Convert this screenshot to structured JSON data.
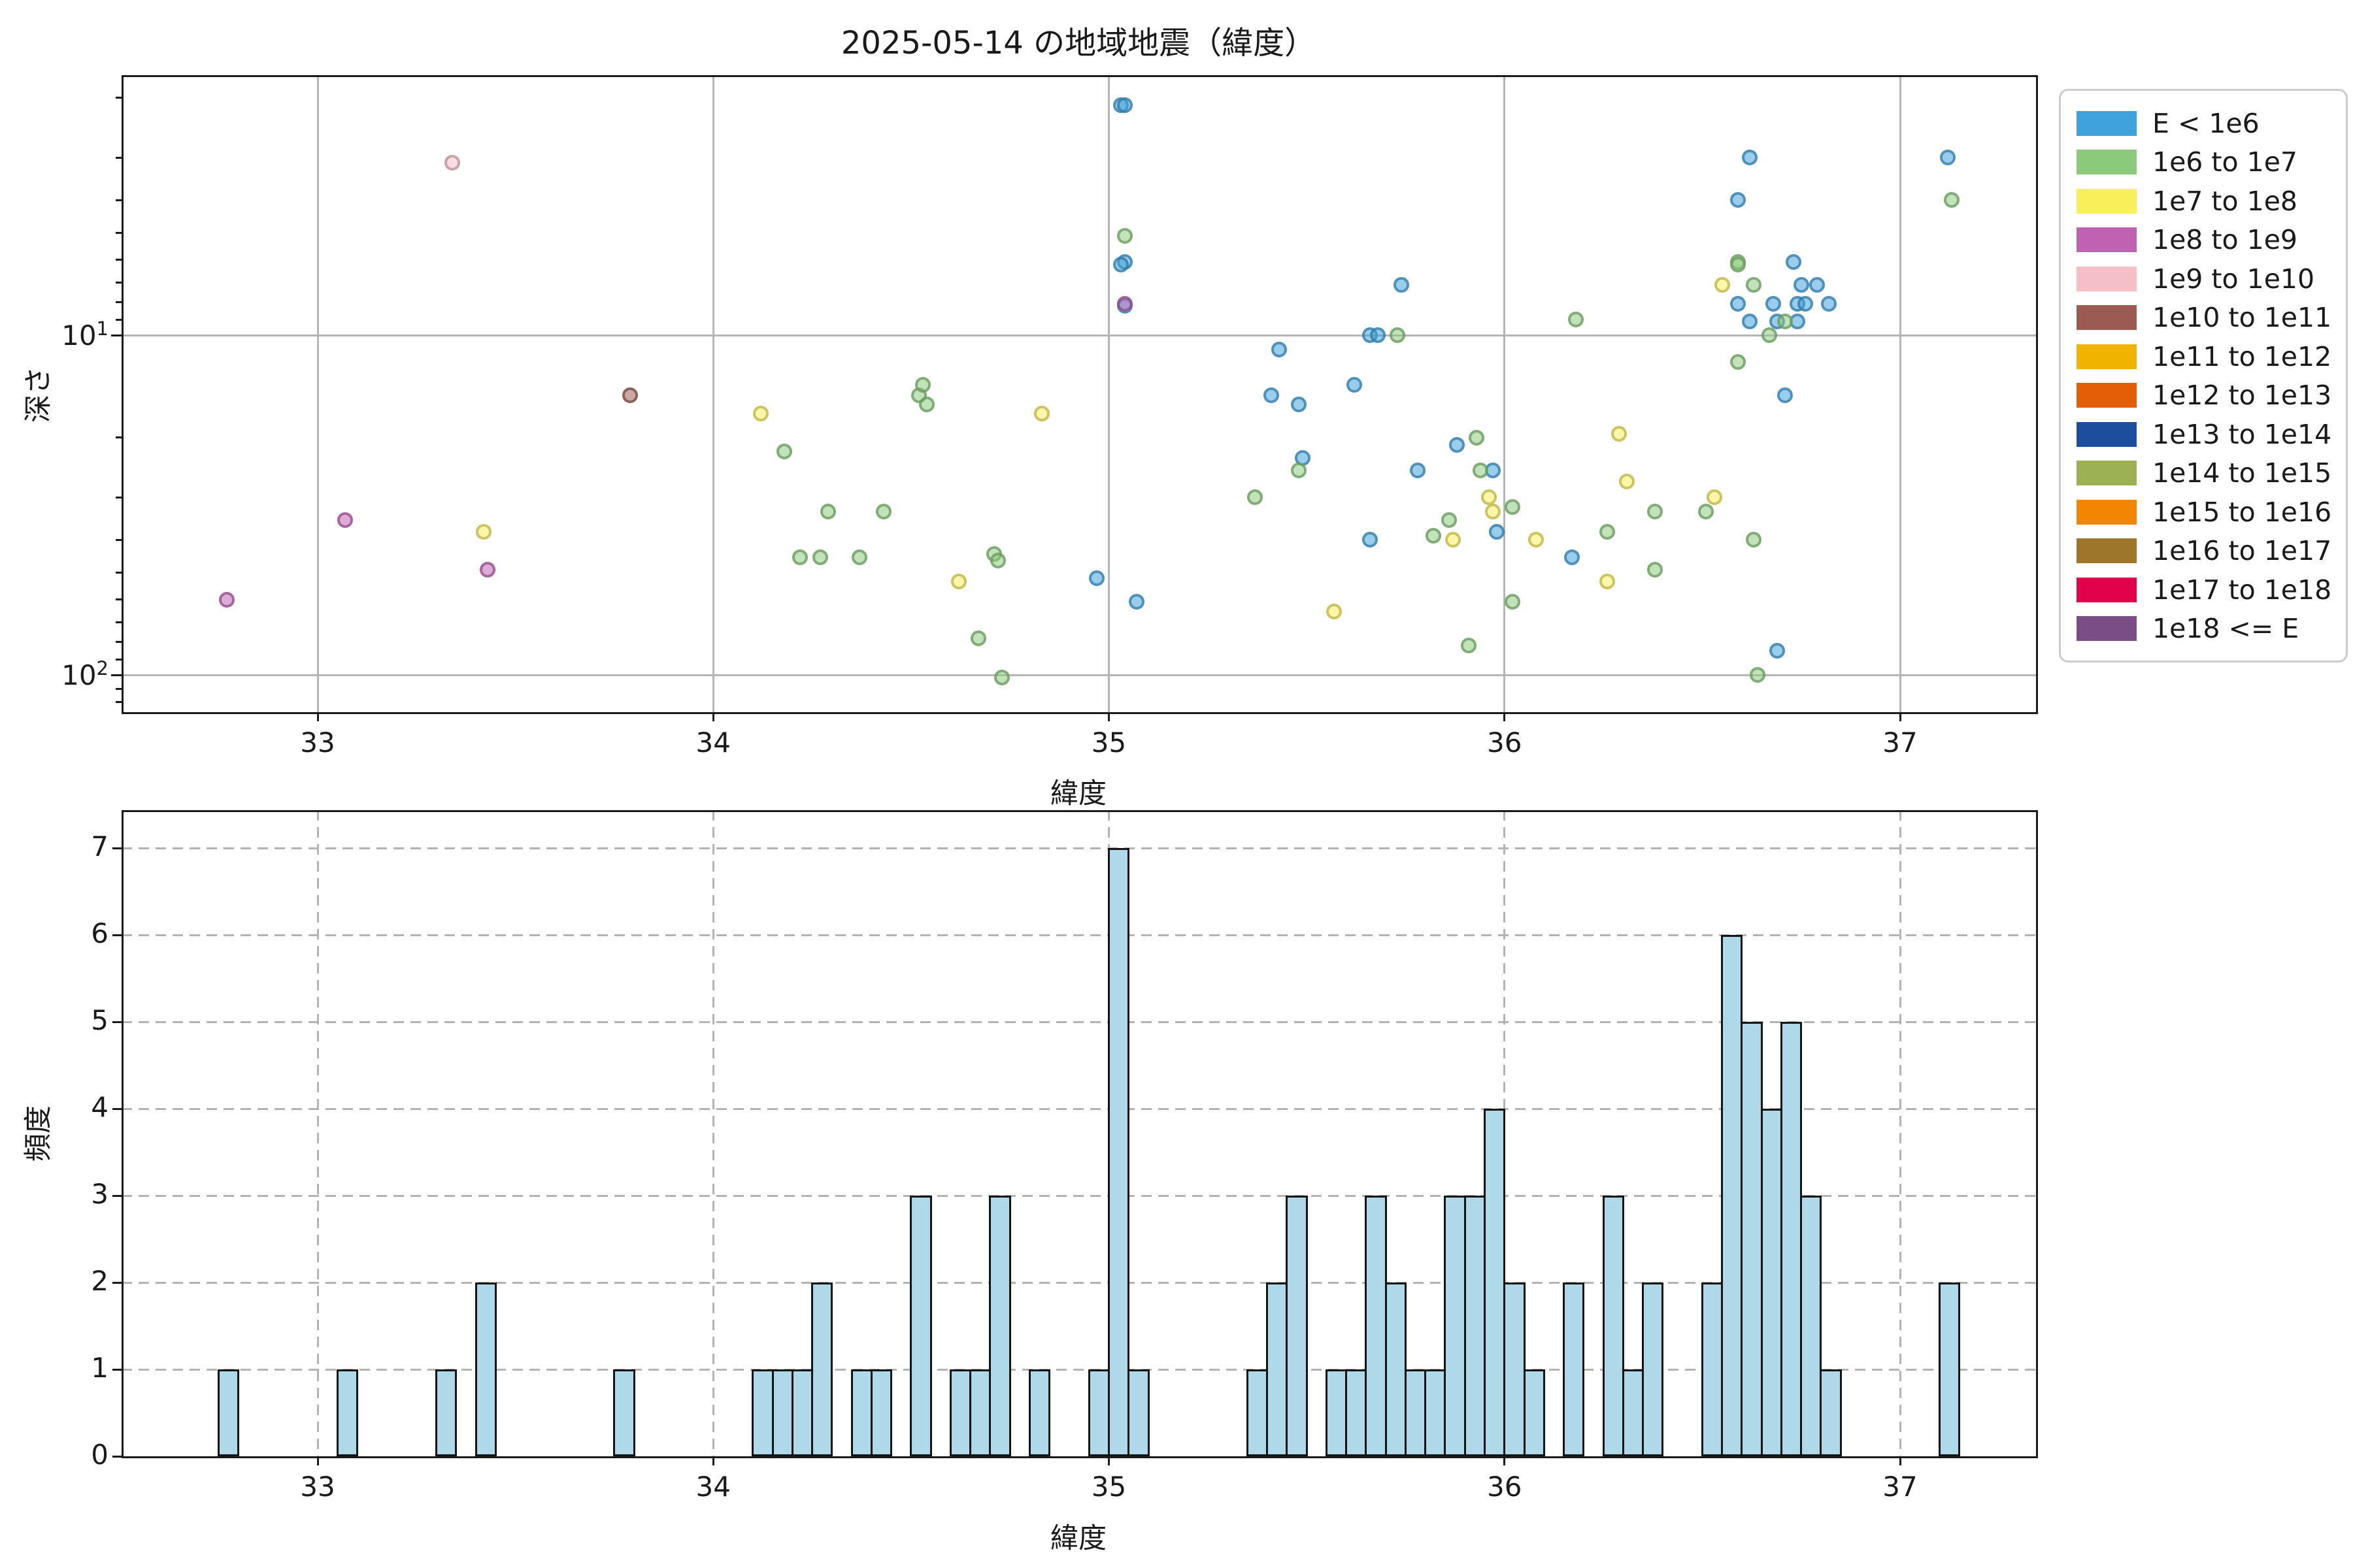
{
  "title": "2025-05-14 の地域地震（緯度）",
  "colors": {
    "background": "#ffffff",
    "grid_solid": "#b5b5b5",
    "grid_dashed": "#b3b3b3",
    "axis": "#1b1b1b",
    "hist_fill": "#afd9e8",
    "hist_edge": "#141414",
    "legend_border": "#cccccc"
  },
  "legend": {
    "items": [
      {
        "label": "E < 1e6",
        "color": "#3fa2dc"
      },
      {
        "label": "1e6 to 1e7",
        "color": "#8cca7b"
      },
      {
        "label": "1e7 to 1e8",
        "color": "#f8ef5b"
      },
      {
        "label": "1e8 to 1e9",
        "color": "#bf62b2"
      },
      {
        "label": "1e9 to 1e10",
        "color": "#f4bfc6"
      },
      {
        "label": "1e10 to 1e11",
        "color": "#9b5a52"
      },
      {
        "label": "1e11 to 1e12",
        "color": "#f0b400"
      },
      {
        "label": "1e12 to 1e13",
        "color": "#e45d07"
      },
      {
        "label": "1e13 to 1e14",
        "color": "#1c4e9d"
      },
      {
        "label": "1e14 to 1e15",
        "color": "#9cb054"
      },
      {
        "label": "1e15 to 1e16",
        "color": "#f28603"
      },
      {
        "label": "1e16 to 1e17",
        "color": "#9d752b"
      },
      {
        "label": "1e17 to 1e18",
        "color": "#e2024b"
      },
      {
        "label": "1e18 <= E",
        "color": "#7b4d86"
      }
    ]
  },
  "chart_data": [
    {
      "type": "scatter",
      "title": "2025-05-14 の地域地震（緯度）",
      "xlabel": "緯度",
      "ylabel": "深さ",
      "xlim": [
        32.5,
        37.35
      ],
      "ylim_depth_log_inverted": [
        1.7,
        129
      ],
      "xticks": [
        33,
        34,
        35,
        36,
        37
      ],
      "yticks": [
        {
          "base": "10",
          "exp": "1",
          "value": 10
        },
        {
          "base": "10",
          "exp": "2",
          "value": 100
        }
      ],
      "grid": "solid, major only",
      "legend_position": "outside upper right",
      "series": [
        {
          "name": "E < 1e6",
          "points": [
            [
              34.97,
              52
            ],
            [
              35.03,
              2.1
            ],
            [
              35.04,
              2.1
            ],
            [
              35.04,
              6.1
            ],
            [
              35.03,
              6.2
            ],
            [
              35.04,
              8.2
            ],
            [
              35.07,
              61
            ],
            [
              35.41,
              15
            ],
            [
              35.43,
              11
            ],
            [
              35.48,
              16
            ],
            [
              35.49,
              23
            ],
            [
              35.62,
              14
            ],
            [
              35.66,
              10
            ],
            [
              35.68,
              10
            ],
            [
              35.66,
              40
            ],
            [
              35.74,
              7.1
            ],
            [
              35.78,
              25
            ],
            [
              35.88,
              21
            ],
            [
              35.97,
              25
            ],
            [
              35.98,
              38
            ],
            [
              36.17,
              45
            ],
            [
              36.59,
              4
            ],
            [
              36.59,
              8.1
            ],
            [
              36.62,
              3
            ],
            [
              36.62,
              9.1
            ],
            [
              36.68,
              8.1
            ],
            [
              36.69,
              9.1
            ],
            [
              36.69,
              85
            ],
            [
              36.71,
              15
            ],
            [
              36.73,
              6.1
            ],
            [
              36.74,
              8.1
            ],
            [
              36.74,
              9.1
            ],
            [
              36.75,
              7.1
            ],
            [
              36.76,
              8.1
            ],
            [
              36.79,
              7.1
            ],
            [
              36.82,
              8.1
            ],
            [
              37.12,
              3
            ]
          ]
        },
        {
          "name": "1e6 to 1e7",
          "points": [
            [
              34.18,
              22
            ],
            [
              34.22,
              45
            ],
            [
              34.27,
              45
            ],
            [
              34.29,
              33
            ],
            [
              34.37,
              45
            ],
            [
              34.43,
              33
            ],
            [
              34.52,
              15
            ],
            [
              34.53,
              14
            ],
            [
              34.54,
              16
            ],
            [
              34.67,
              78
            ],
            [
              34.71,
              44
            ],
            [
              34.72,
              46
            ],
            [
              34.73,
              102
            ],
            [
              35.04,
              5.1
            ],
            [
              35.37,
              30
            ],
            [
              35.48,
              25
            ],
            [
              35.73,
              10
            ],
            [
              35.82,
              39
            ],
            [
              35.86,
              35
            ],
            [
              35.91,
              82
            ],
            [
              35.93,
              20
            ],
            [
              35.94,
              25
            ],
            [
              36.02,
              32
            ],
            [
              36.02,
              61
            ],
            [
              36.18,
              9
            ],
            [
              36.26,
              38
            ],
            [
              36.38,
              49
            ],
            [
              36.38,
              33
            ],
            [
              36.51,
              33
            ],
            [
              36.59,
              6.1
            ],
            [
              36.59,
              6.2
            ],
            [
              36.59,
              12
            ],
            [
              36.63,
              7.1
            ],
            [
              36.63,
              40
            ],
            [
              36.64,
              100
            ],
            [
              36.67,
              10
            ],
            [
              36.71,
              9.1
            ],
            [
              37.13,
              4
            ]
          ]
        },
        {
          "name": "1e7 to 1e8",
          "points": [
            [
              33.42,
              38
            ],
            [
              34.12,
              17
            ],
            [
              34.62,
              53
            ],
            [
              34.83,
              17
            ],
            [
              35.57,
              65
            ],
            [
              35.87,
              40
            ],
            [
              35.96,
              30
            ],
            [
              35.97,
              33
            ],
            [
              36.08,
              40
            ],
            [
              36.26,
              53
            ],
            [
              36.29,
              19.5
            ],
            [
              36.31,
              27
            ],
            [
              36.53,
              30
            ],
            [
              36.55,
              7.1
            ]
          ]
        },
        {
          "name": "1e8 to 1e9",
          "points": [
            [
              32.77,
              60
            ],
            [
              33.07,
              35
            ],
            [
              33.43,
              49
            ],
            [
              35.04,
              8.1
            ]
          ]
        },
        {
          "name": "1e9 to 1e10",
          "points": [
            [
              33.34,
              3.1
            ]
          ]
        },
        {
          "name": "1e10 to 1e11",
          "points": [
            [
              33.79,
              15
            ]
          ]
        },
        {
          "name": "1e11 to 1e12",
          "points": []
        },
        {
          "name": "1e12 to 1e13",
          "points": []
        },
        {
          "name": "1e13 to 1e14",
          "points": []
        },
        {
          "name": "1e14 to 1e15",
          "points": []
        },
        {
          "name": "1e15 to 1e16",
          "points": []
        },
        {
          "name": "1e16 to 1e17",
          "points": []
        },
        {
          "name": "1e17 to 1e18",
          "points": []
        },
        {
          "name": "1e18 <= E",
          "points": []
        }
      ]
    },
    {
      "type": "bar",
      "subtype": "histogram",
      "xlabel": "緯度",
      "ylabel": "頻度",
      "xlim": [
        32.5,
        37.35
      ],
      "ylim": [
        0,
        7.45
      ],
      "xticks": [
        33,
        34,
        35,
        36,
        37
      ],
      "yticks": [
        0,
        1,
        2,
        3,
        4,
        5,
        6,
        7
      ],
      "grid": "dashed, both axes",
      "bin_width": 0.05,
      "bins": [
        {
          "lat": 32.75,
          "count": 1
        },
        {
          "lat": 33.05,
          "count": 1
        },
        {
          "lat": 33.3,
          "count": 1
        },
        {
          "lat": 33.4,
          "count": 2
        },
        {
          "lat": 33.75,
          "count": 1
        },
        {
          "lat": 34.1,
          "count": 1
        },
        {
          "lat": 34.15,
          "count": 1
        },
        {
          "lat": 34.2,
          "count": 1
        },
        {
          "lat": 34.25,
          "count": 2
        },
        {
          "lat": 34.35,
          "count": 1
        },
        {
          "lat": 34.4,
          "count": 1
        },
        {
          "lat": 34.5,
          "count": 3
        },
        {
          "lat": 34.6,
          "count": 1
        },
        {
          "lat": 34.65,
          "count": 1
        },
        {
          "lat": 34.7,
          "count": 3
        },
        {
          "lat": 34.8,
          "count": 1
        },
        {
          "lat": 34.95,
          "count": 1
        },
        {
          "lat": 35.0,
          "count": 7
        },
        {
          "lat": 35.05,
          "count": 1
        },
        {
          "lat": 35.35,
          "count": 1
        },
        {
          "lat": 35.4,
          "count": 2
        },
        {
          "lat": 35.45,
          "count": 3
        },
        {
          "lat": 35.55,
          "count": 1
        },
        {
          "lat": 35.6,
          "count": 1
        },
        {
          "lat": 35.65,
          "count": 3
        },
        {
          "lat": 35.7,
          "count": 2
        },
        {
          "lat": 35.75,
          "count": 1
        },
        {
          "lat": 35.8,
          "count": 1
        },
        {
          "lat": 35.85,
          "count": 3
        },
        {
          "lat": 35.9,
          "count": 3
        },
        {
          "lat": 35.95,
          "count": 4
        },
        {
          "lat": 36.0,
          "count": 2
        },
        {
          "lat": 36.05,
          "count": 1
        },
        {
          "lat": 36.15,
          "count": 2
        },
        {
          "lat": 36.25,
          "count": 3
        },
        {
          "lat": 36.3,
          "count": 1
        },
        {
          "lat": 36.35,
          "count": 2
        },
        {
          "lat": 36.5,
          "count": 2
        },
        {
          "lat": 36.55,
          "count": 6
        },
        {
          "lat": 36.6,
          "count": 5
        },
        {
          "lat": 36.65,
          "count": 4
        },
        {
          "lat": 36.7,
          "count": 5
        },
        {
          "lat": 36.75,
          "count": 3
        },
        {
          "lat": 36.8,
          "count": 1
        },
        {
          "lat": 37.1,
          "count": 2
        }
      ]
    }
  ]
}
